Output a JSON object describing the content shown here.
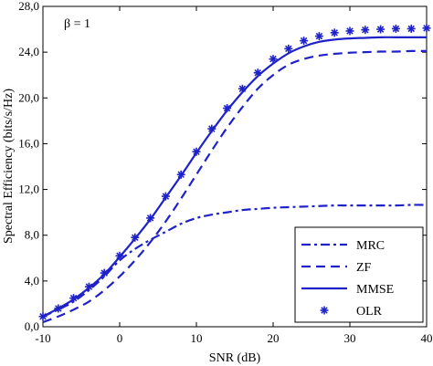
{
  "chart_data": {
    "type": "line",
    "title": "",
    "xlabel": "SNR (dB)",
    "ylabel": "Spectral Efficiency (bits/s/Hz)",
    "xlim": [
      -10,
      40
    ],
    "ylim": [
      0,
      28
    ],
    "x_ticks": [
      -10,
      0,
      10,
      20,
      30,
      40
    ],
    "x_tick_labels": [
      "-10",
      "0",
      "10",
      "20",
      "30",
      "40"
    ],
    "y_ticks": [
      0,
      4,
      8,
      12,
      16,
      20,
      24,
      28
    ],
    "y_tick_labels": [
      "0,0",
      "4,0",
      "8,0",
      "12,0",
      "16,0",
      "20,0",
      "24,0",
      "28,0"
    ],
    "annotation": "β = 1",
    "grid": false,
    "legend_position": "bottom-right",
    "color": "#1f22c8",
    "series": [
      {
        "name": "MRC",
        "style": "dashdot",
        "x": [
          -10,
          -8,
          -6,
          -4,
          -2,
          0,
          2,
          4,
          6,
          8,
          10,
          12,
          14,
          16,
          18,
          20,
          22,
          24,
          26,
          28,
          30,
          32,
          34,
          36,
          38,
          40
        ],
        "y": [
          0.9,
          1.5,
          2.2,
          3.2,
          4.4,
          5.8,
          6.8,
          7.6,
          8.3,
          9.0,
          9.5,
          9.8,
          10.0,
          10.2,
          10.3,
          10.4,
          10.45,
          10.5,
          10.55,
          10.6,
          10.6,
          10.6,
          10.6,
          10.6,
          10.65,
          10.65
        ]
      },
      {
        "name": "ZF",
        "style": "dashed",
        "x": [
          -10,
          -8,
          -6,
          -4,
          -2,
          0,
          2,
          4,
          6,
          8,
          10,
          12,
          14,
          16,
          18,
          20,
          22,
          24,
          26,
          28,
          30,
          32,
          34,
          36,
          38,
          40
        ],
        "y": [
          0.4,
          0.9,
          1.5,
          2.2,
          3.2,
          4.4,
          5.8,
          7.4,
          9.2,
          11.2,
          13.3,
          15.4,
          17.4,
          19.2,
          20.8,
          22.0,
          22.9,
          23.4,
          23.7,
          23.85,
          23.95,
          24.0,
          24.05,
          24.05,
          24.1,
          24.1
        ]
      },
      {
        "name": "MMSE",
        "style": "solid",
        "x": [
          -10,
          -8,
          -6,
          -4,
          -2,
          0,
          2,
          4,
          6,
          8,
          10,
          12,
          14,
          16,
          18,
          20,
          22,
          24,
          26,
          28,
          30,
          32,
          34,
          36,
          38,
          40
        ],
        "y": [
          0.9,
          1.6,
          2.4,
          3.4,
          4.6,
          6.1,
          7.7,
          9.4,
          11.3,
          13.2,
          15.2,
          17.1,
          18.9,
          20.5,
          21.9,
          23.0,
          23.9,
          24.5,
          24.9,
          25.1,
          25.2,
          25.25,
          25.3,
          25.3,
          25.3,
          25.3
        ]
      },
      {
        "name": "OLR",
        "style": "markers",
        "x": [
          -10,
          -8,
          -6,
          -4,
          -2,
          0,
          2,
          4,
          6,
          8,
          10,
          12,
          14,
          16,
          18,
          20,
          22,
          24,
          26,
          28,
          30,
          32,
          34,
          36,
          38,
          40
        ],
        "y": [
          0.9,
          1.6,
          2.5,
          3.5,
          4.7,
          6.2,
          7.8,
          9.5,
          11.4,
          13.3,
          15.3,
          17.3,
          19.1,
          20.8,
          22.2,
          23.4,
          24.3,
          25.0,
          25.4,
          25.7,
          25.85,
          25.95,
          26.0,
          26.05,
          26.05,
          26.1
        ]
      }
    ]
  }
}
